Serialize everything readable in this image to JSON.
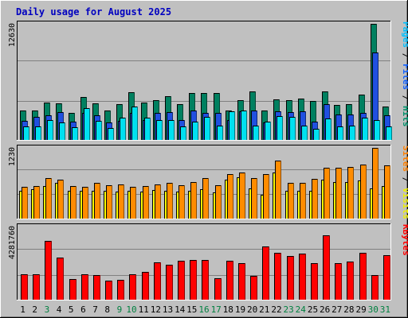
{
  "chart_data": [
    {
      "type": "bar",
      "title": "Daily usage for August 2025",
      "ylabel_max": "12630",
      "side_labels": [
        {
          "text": "Pages",
          "color": "#00c0ff"
        },
        {
          "text": " / ",
          "color": "#000000"
        },
        {
          "text": "Files",
          "color": "#1060ff"
        },
        {
          "text": " / ",
          "color": "#000000"
        },
        {
          "text": "Hits",
          "color": "#00906a"
        }
      ],
      "categories": [
        "1",
        "2",
        "3",
        "4",
        "5",
        "6",
        "7",
        "8",
        "9",
        "10",
        "11",
        "12",
        "13",
        "14",
        "15",
        "16",
        "17",
        "18",
        "19",
        "20",
        "21",
        "22",
        "23",
        "24",
        "25",
        "26",
        "27",
        "28",
        "29",
        "30",
        "31"
      ],
      "series": [
        {
          "name": "Hits",
          "color": "#008060",
          "values": [
            3200,
            3200,
            4100,
            4000,
            2900,
            4700,
            4000,
            3200,
            3900,
            5200,
            4100,
            4300,
            4800,
            3900,
            5100,
            5100,
            5100,
            3200,
            4300,
            5300,
            3200,
            4400,
            4300,
            4500,
            4200,
            5300,
            3800,
            3900,
            4900,
            12630,
            3600
          ]
        },
        {
          "name": "Files",
          "color": "#2050e0",
          "values": [
            2100,
            2500,
            2700,
            3000,
            2000,
            2900,
            2700,
            1900,
            2100,
            2900,
            2200,
            2900,
            3000,
            2200,
            3200,
            2900,
            2900,
            2200,
            3100,
            3200,
            1900,
            3100,
            3000,
            3100,
            2000,
            3900,
            2800,
            2800,
            2900,
            9500,
            2700
          ]
        },
        {
          "name": "Pages",
          "color": "#00e0f0",
          "values": [
            1500,
            1500,
            2200,
            1900,
            1400,
            3500,
            2100,
            1300,
            2400,
            3600,
            2400,
            2200,
            2200,
            1500,
            2000,
            2500,
            1600,
            3100,
            3200,
            1600,
            2000,
            2600,
            2500,
            1600,
            1200,
            2300,
            1500,
            1600,
            2400,
            2200,
            1500
          ]
        }
      ],
      "ylim": [
        0,
        12630
      ]
    },
    {
      "type": "bar",
      "ylabel_max": "1230",
      "side_labels": [
        {
          "text": "Sites",
          "color": "#ff8000"
        },
        {
          "text": " / ",
          "color": "#000000"
        },
        {
          "text": "Visits",
          "color": "#f0f000"
        }
      ],
      "series": [
        {
          "name": "Visits",
          "color": "#ffff00",
          "values": [
            490,
            510,
            560,
            620,
            480,
            490,
            480,
            480,
            470,
            490,
            470,
            500,
            490,
            470,
            490,
            510,
            460,
            680,
            720,
            520,
            410,
            800,
            480,
            490,
            490,
            680,
            640,
            630,
            670,
            520,
            560
          ]
        },
        {
          "name": "Sites",
          "color": "#ff8c00",
          "values": [
            550,
            560,
            710,
            680,
            570,
            550,
            620,
            580,
            590,
            550,
            570,
            590,
            620,
            580,
            630,
            700,
            580,
            780,
            800,
            700,
            770,
            1010,
            620,
            620,
            690,
            890,
            880,
            900,
            940,
            1230,
            920
          ]
        }
      ],
      "ylim": [
        0,
        1230
      ]
    },
    {
      "type": "bar",
      "ylabel_max": "4281760",
      "side_labels": [
        {
          "text": "KBytes",
          "color": "#ff0000"
        }
      ],
      "series": [
        {
          "name": "KBytes",
          "color": "#ff0000",
          "values": [
            1480000,
            1500000,
            3440000,
            2460000,
            1200000,
            1500000,
            1420000,
            1140000,
            1180000,
            1500000,
            1640000,
            2180000,
            2070000,
            2280000,
            2330000,
            2350000,
            1240000,
            2300000,
            2130000,
            1380000,
            3100000,
            2760000,
            2550000,
            2700000,
            2150000,
            3780000,
            2120000,
            2230000,
            2740000,
            1430000,
            2600000
          ]
        }
      ],
      "ylim": [
        0,
        4281760
      ]
    }
  ],
  "x_label_colors": {
    "weekday": "#000000",
    "weekend": "#008040"
  },
  "weekend_days": [
    "3",
    "9",
    "10",
    "16",
    "17",
    "23",
    "24",
    "30",
    "31"
  ]
}
